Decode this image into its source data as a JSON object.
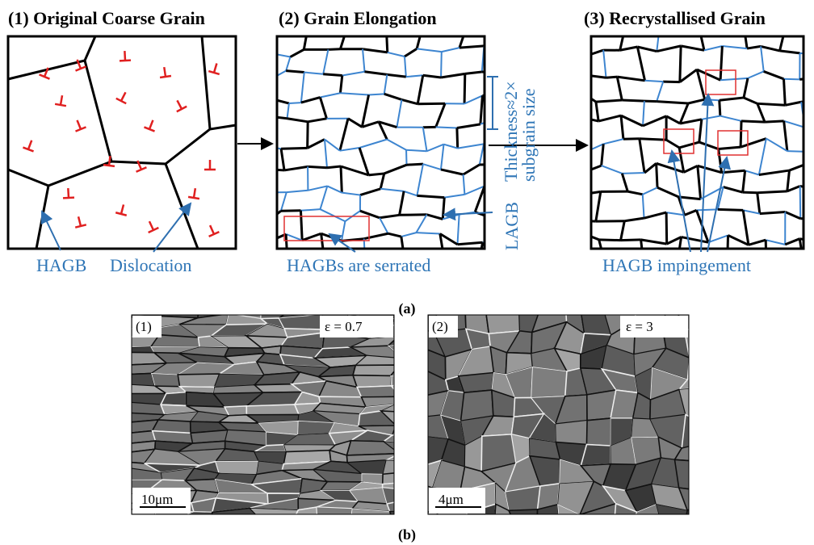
{
  "panel_a": {
    "label": "(a)",
    "stages": [
      {
        "title": "(1) Original Coarse Grain",
        "labels": [
          "HAGB",
          "Dislocation"
        ]
      },
      {
        "title": "(2) Grain Elongation",
        "labels": [
          "HAGBs are serrated",
          "LAGB",
          "Thickness≈2×",
          "subgrain size"
        ]
      },
      {
        "title": "(3) Recrystallised Grain",
        "labels": [
          "HAGB impingement"
        ]
      }
    ]
  },
  "panel_b": {
    "label": "(b)",
    "images": [
      {
        "index": "(1)",
        "strain": "ε = 0.7",
        "scale_bar": "10μm"
      },
      {
        "index": "(2)",
        "strain": "ε = 3",
        "scale_bar": "4μm"
      }
    ]
  }
}
